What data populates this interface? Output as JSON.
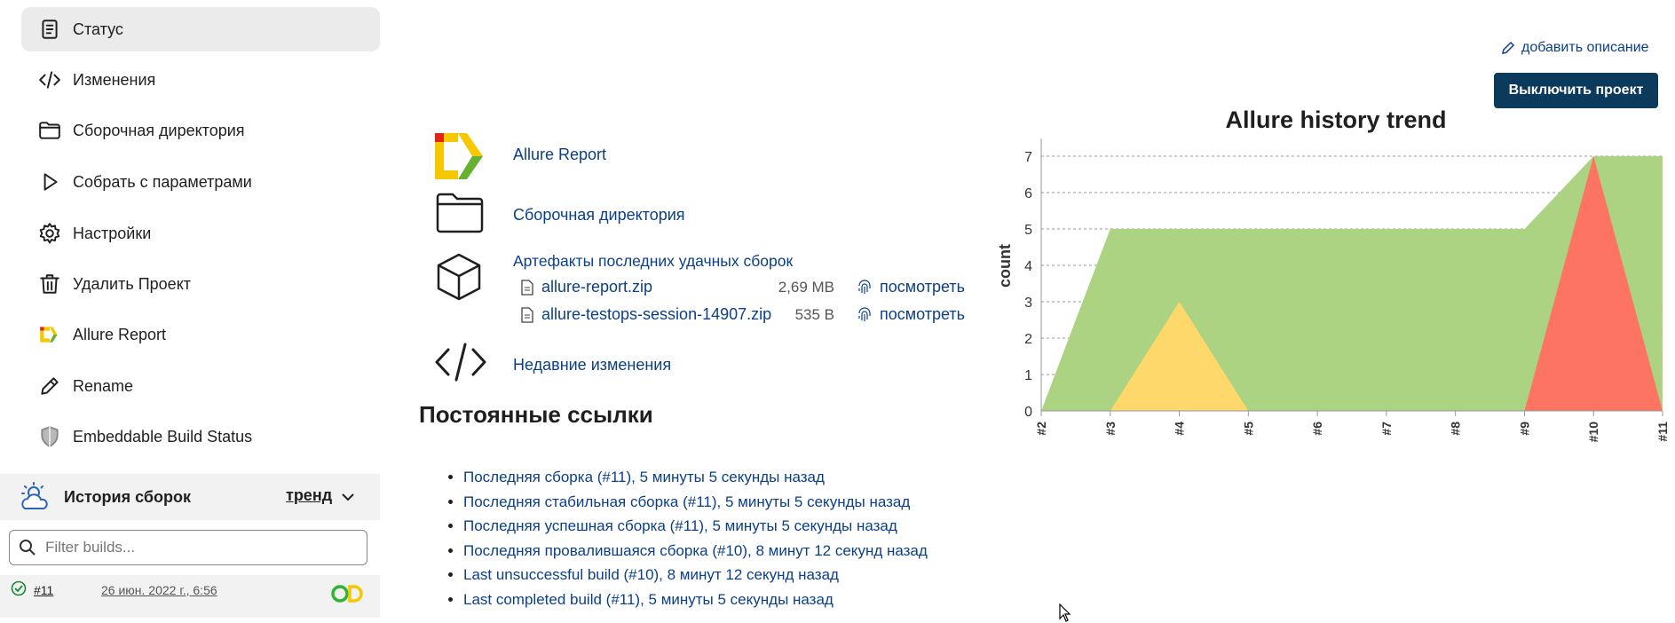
{
  "sidebar": {
    "items": [
      {
        "label": "Статус",
        "icon": "document-icon"
      },
      {
        "label": "Изменения",
        "icon": "code-icon"
      },
      {
        "label": "Сборочная директория",
        "icon": "folder-icon"
      },
      {
        "label": "Собрать с параметрами",
        "icon": "play-icon"
      },
      {
        "label": "Настройки",
        "icon": "gear-icon"
      },
      {
        "label": "Удалить Проект",
        "icon": "trash-icon"
      },
      {
        "label": "Allure Report",
        "icon": "allure-icon"
      },
      {
        "label": "Rename",
        "icon": "pencil-icon"
      },
      {
        "label": "Embeddable Build Status",
        "icon": "shield-icon"
      }
    ],
    "history": {
      "title": "История сборок",
      "trend_label": "тренд",
      "filter_placeholder": "Filter builds...",
      "builds": [
        {
          "number": "#11",
          "date": "26 июн. 2022 г., 6:56"
        }
      ]
    }
  },
  "header": {
    "add_description": "добавить описание",
    "disable_button": "Выключить проект"
  },
  "main": {
    "links": {
      "allure": "Allure Report",
      "workspace": "Сборочная директория",
      "artifacts": "Артефакты последних удачных сборок",
      "changes": "Недавние изменения"
    },
    "artifacts": [
      {
        "name": "allure-report.zip",
        "size": "2,69 MB",
        "view": "посмотреть"
      },
      {
        "name": "allure-testops-session-14907.zip",
        "size": "535 B",
        "view": "посмотреть"
      }
    ],
    "permalinks_title": "Постоянные ссылки",
    "permalinks": [
      "Последняя сборка (#11), 5 минуты 5 секунды назад",
      "Последняя стабильная сборка (#11), 5 минуты 5 секунды назад",
      "Последняя успешная сборка (#11), 5 минуты 5 секунды назад",
      "Последняя провалившаяся сборка (#10), 8 минут 12 секунд назад",
      "Last unsuccessful build (#10), 8 минут 12 секунд назад",
      "Last completed build (#11), 5 минуты 5 секунды назад"
    ]
  },
  "chart_data": {
    "type": "area",
    "title": "Allure history trend",
    "xlabel": "",
    "ylabel": "count",
    "categories": [
      "#2",
      "#3",
      "#4",
      "#5",
      "#6",
      "#7",
      "#8",
      "#9",
      "#10",
      "#11"
    ],
    "ylim": [
      0,
      7
    ],
    "yticks": [
      0,
      1,
      2,
      3,
      4,
      5,
      6,
      7
    ],
    "grid": true,
    "series": [
      {
        "color": "#acd381",
        "values": [
          0,
          5,
          5,
          5,
          5,
          5,
          5,
          5,
          7,
          7
        ]
      },
      {
        "color": "#fed86b",
        "values": [
          0,
          0,
          3,
          0,
          0,
          0,
          0,
          0,
          0,
          0
        ]
      },
      {
        "color": "#fd7462",
        "values": [
          0,
          0,
          0,
          0,
          0,
          0,
          0,
          0,
          7,
          0
        ]
      }
    ]
  }
}
